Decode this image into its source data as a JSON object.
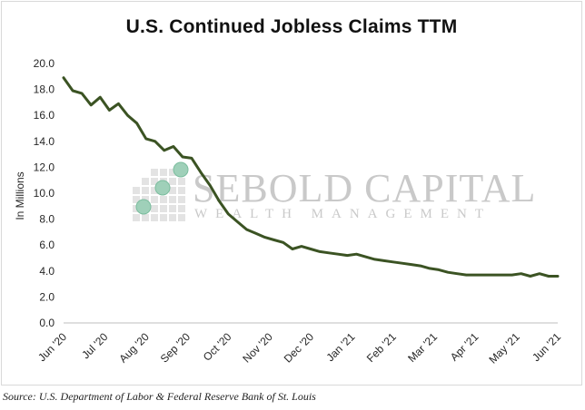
{
  "source_text": "Source: U.S. Department of Labor & Federal Reserve Bank of St. Louis",
  "watermark": {
    "line1": "SEBOLD CAPITAL",
    "line2": "WEALTH MANAGEMENT"
  },
  "colors": {
    "line": "#3b5323",
    "axis": "#bfbfbf",
    "watermark": "#c9c9c9"
  },
  "chart_data": {
    "type": "line",
    "title": "U.S. Continued Jobless Claims TTM",
    "xlabel": "",
    "ylabel": "In Millions",
    "ylim": [
      0,
      20
    ],
    "yticks": [
      "0.0",
      "2.0",
      "4.0",
      "6.0",
      "8.0",
      "10.0",
      "12.0",
      "14.0",
      "16.0",
      "18.0",
      "20.0"
    ],
    "grid": false,
    "legend": "none",
    "x_tick_labels": [
      "Jun '20",
      "Jul '20",
      "Aug '20",
      "Sep '20",
      "Oct '20",
      "Nov '20",
      "Dec '20",
      "Jan '21",
      "Feb '21",
      "Mar '21",
      "Apr '21",
      "May '21",
      "Jun '21"
    ],
    "series": [
      {
        "values": [
          18.9,
          17.9,
          17.7,
          16.8,
          17.4,
          16.4,
          16.9,
          16.0,
          15.4,
          14.2,
          14.0,
          13.3,
          13.6,
          12.8,
          12.7,
          11.6,
          10.6,
          9.4,
          8.4,
          7.8,
          7.2,
          6.9,
          6.6,
          6.4,
          6.2,
          5.7,
          5.9,
          5.7,
          5.5,
          5.4,
          5.3,
          5.2,
          5.3,
          5.1,
          4.9,
          4.8,
          4.7,
          4.6,
          4.5,
          4.4,
          4.2,
          4.1,
          3.9,
          3.8,
          3.7,
          3.7,
          3.7,
          3.7,
          3.7,
          3.7,
          3.8,
          3.6,
          3.8,
          3.6,
          3.6
        ]
      }
    ]
  }
}
